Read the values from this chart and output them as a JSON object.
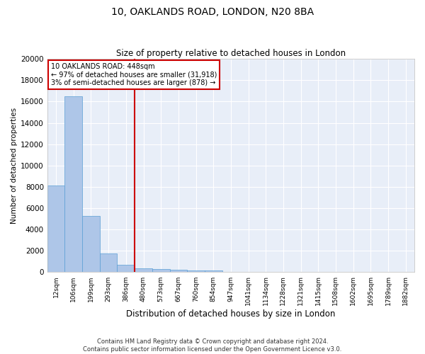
{
  "title_line1": "10, OAKLANDS ROAD, LONDON, N20 8BA",
  "title_line2": "Size of property relative to detached houses in London",
  "xlabel": "Distribution of detached houses by size in London",
  "ylabel": "Number of detached properties",
  "bar_color": "#aec6e8",
  "bar_edge_color": "#5a9fd4",
  "background_color": "#e8eef8",
  "grid_color": "#ffffff",
  "categories": [
    "12sqm",
    "106sqm",
    "199sqm",
    "293sqm",
    "386sqm",
    "480sqm",
    "573sqm",
    "667sqm",
    "760sqm",
    "854sqm",
    "947sqm",
    "1041sqm",
    "1134sqm",
    "1228sqm",
    "1321sqm",
    "1415sqm",
    "1508sqm",
    "1602sqm",
    "1695sqm",
    "1789sqm",
    "1882sqm"
  ],
  "values": [
    8100,
    16500,
    5300,
    1750,
    700,
    370,
    290,
    210,
    170,
    130,
    0,
    0,
    0,
    0,
    0,
    0,
    0,
    0,
    0,
    0,
    0
  ],
  "ylim": [
    0,
    20000
  ],
  "yticks": [
    0,
    2000,
    4000,
    6000,
    8000,
    10000,
    12000,
    14000,
    16000,
    18000,
    20000
  ],
  "vline_x": 4.5,
  "vline_color": "#cc0000",
  "annotation_line1": "10 OAKLANDS ROAD: 448sqm",
  "annotation_line2": "← 97% of detached houses are smaller (31,918)",
  "annotation_line3": "3% of semi-detached houses are larger (878) →",
  "footer_line1": "Contains HM Land Registry data © Crown copyright and database right 2024.",
  "footer_line2": "Contains public sector information licensed under the Open Government Licence v3.0."
}
